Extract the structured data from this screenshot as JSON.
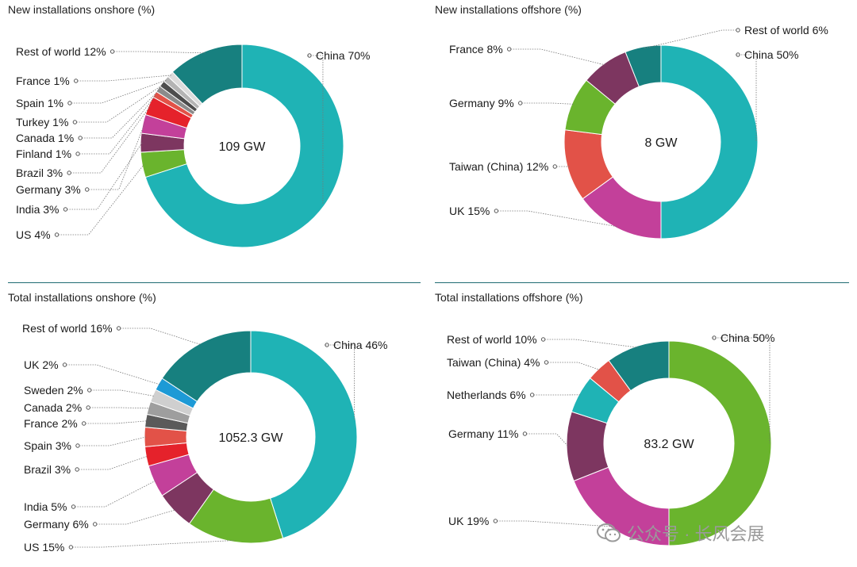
{
  "chart_data": [
    {
      "type": "pie",
      "title": "New installations onshore (%)",
      "center_label": "109 GW",
      "categories": [
        "China",
        "US",
        "India",
        "Germany",
        "Brazil",
        "Finland",
        "Canada",
        "Turkey",
        "Spain",
        "France",
        "Rest of world"
      ],
      "values": [
        70,
        4,
        3,
        3,
        3,
        1,
        1,
        1,
        1,
        1,
        12
      ],
      "labels": [
        "China 70%",
        "US 4%",
        "India 3%",
        "Germany 3%",
        "Brazil 3%",
        "Finland 1%",
        "Canada 1%",
        "Turkey 1%",
        "Spain 1%",
        "France 1%",
        "Rest of world 12%"
      ],
      "colors": [
        "#1fb3b5",
        "#6ab42d",
        "#7d3660",
        "#c3409a",
        "#e5222b",
        "#e25248",
        "#8b8b8b",
        "#4d4d4d",
        "#b4b4b4",
        "#dcdcdc",
        "#17807f"
      ]
    },
    {
      "type": "pie",
      "title": "New installations offshore (%)",
      "center_label": "8 GW",
      "categories": [
        "China",
        "UK",
        "Taiwan (China)",
        "Germany",
        "France",
        "Rest of world"
      ],
      "values": [
        50,
        15,
        12,
        9,
        8,
        6
      ],
      "labels": [
        "China 50%",
        "UK 15%",
        "Taiwan (China) 12%",
        "Germany 9%",
        "France 8%",
        "Rest of world 6%"
      ],
      "colors": [
        "#1fb3b5",
        "#c3409a",
        "#e25248",
        "#6ab42d",
        "#7d3660",
        "#17807f"
      ]
    },
    {
      "type": "pie",
      "title": "Total installations onshore (%)",
      "center_label": "1052.3 GW",
      "categories": [
        "China",
        "US",
        "Germany",
        "India",
        "Brazil",
        "Spain",
        "France",
        "Canada",
        "Sweden",
        "UK",
        "Rest of world"
      ],
      "values": [
        46,
        15,
        6,
        5,
        3,
        3,
        2,
        2,
        2,
        2,
        16
      ],
      "labels": [
        "China 46%",
        "US 15%",
        "Germany 6%",
        "India 5%",
        "Brazil 3%",
        "Spain 3%",
        "France 2%",
        "Canada 2%",
        "Sweden 2%",
        "UK 2%",
        "Rest of world 16%"
      ],
      "colors": [
        "#1fb3b5",
        "#6ab42d",
        "#7d3660",
        "#c3409a",
        "#e5222b",
        "#e25248",
        "#5a5a5a",
        "#9e9e9e",
        "#cfcfcf",
        "#1d9ad6",
        "#17807f"
      ]
    },
    {
      "type": "pie",
      "title": "Total installations offshore (%)",
      "center_label": "83.2 GW",
      "categories": [
        "China",
        "UK",
        "Germany",
        "Netherlands",
        "Taiwan (China)",
        "Rest of world"
      ],
      "values": [
        50,
        19,
        11,
        6,
        4,
        10
      ],
      "labels": [
        "China 50%",
        "UK 19%",
        "Germany 11%",
        "Netherlands 6%",
        "Taiwan (China) 4%",
        "Rest of world 10%"
      ],
      "colors": [
        "#6ab42d",
        "#c3409a",
        "#7d3660",
        "#1fb3b5",
        "#e25248",
        "#17807f"
      ]
    }
  ],
  "watermark": {
    "text": "公众号 · 长风会展"
  }
}
